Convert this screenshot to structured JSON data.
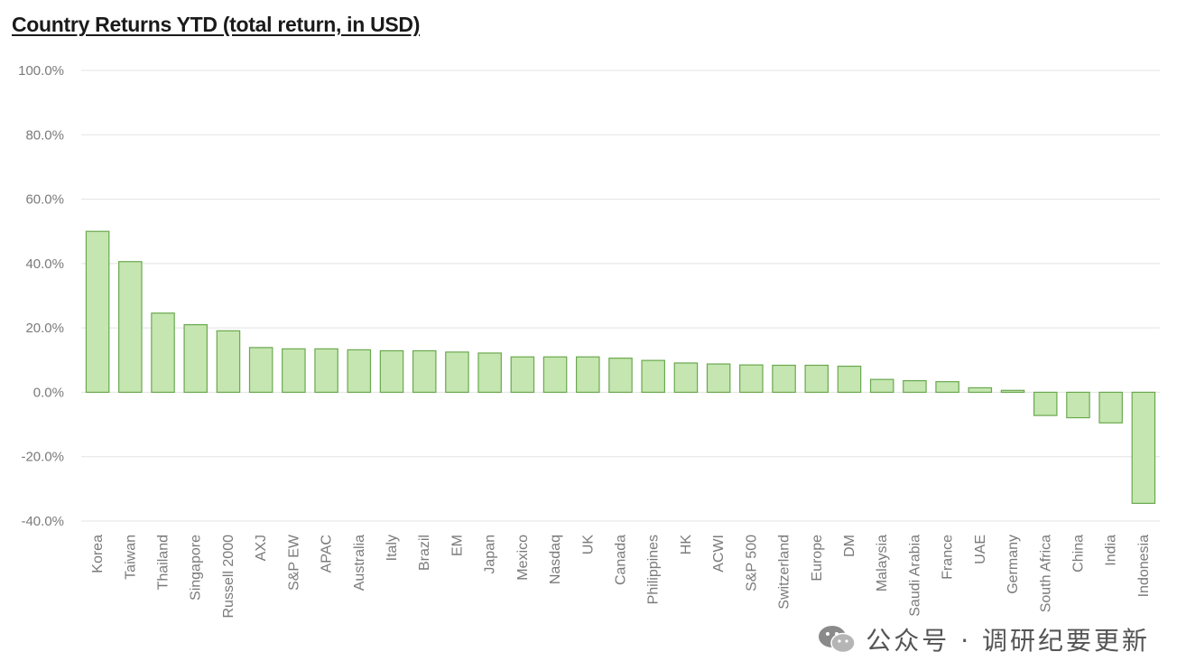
{
  "chart_data": {
    "type": "bar",
    "title": "Country Returns YTD (total return, in USD)",
    "xlabel": "",
    "ylabel": "",
    "ylim": [
      -40,
      100
    ],
    "yticks": [
      100,
      80,
      60,
      40,
      20,
      0,
      -20,
      -40
    ],
    "ytick_labels": [
      "100.0%",
      "80.0%",
      "60.0%",
      "40.0%",
      "20.0%",
      "0.0%",
      "-20.0%",
      "-40.0%"
    ],
    "grid": true,
    "legend": "none",
    "bar_color": "#c5e6b0",
    "bar_edge_color": "#6aa84f",
    "categories": [
      "Korea",
      "Taiwan",
      "Thailand",
      "Singapore",
      "Russell 2000",
      "AXJ",
      "S&P EW",
      "APAC",
      "Australia",
      "Italy",
      "Brazil",
      "EM",
      "Japan",
      "Mexico",
      "Nasdaq",
      "UK",
      "Canada",
      "Philippines",
      "HK",
      "ACWI",
      "S&P 500",
      "Switzerland",
      "Europe",
      "DM",
      "Malaysia",
      "Saudi Arabia",
      "France",
      "UAE",
      "Germany",
      "South Africa",
      "China",
      "India",
      "Indonesia"
    ],
    "values": [
      50.0,
      40.6,
      24.6,
      21.0,
      19.1,
      13.9,
      13.5,
      13.5,
      13.2,
      12.9,
      12.9,
      12.5,
      12.2,
      11.0,
      11.0,
      11.0,
      10.6,
      9.9,
      9.1,
      8.8,
      8.5,
      8.4,
      8.4,
      8.1,
      4.0,
      3.6,
      3.3,
      1.4,
      0.6,
      -7.2,
      -7.9,
      -9.5,
      -34.5
    ]
  },
  "watermark": {
    "text": "公众号 · 调研纪要更新",
    "icon": "wechat-icon"
  }
}
